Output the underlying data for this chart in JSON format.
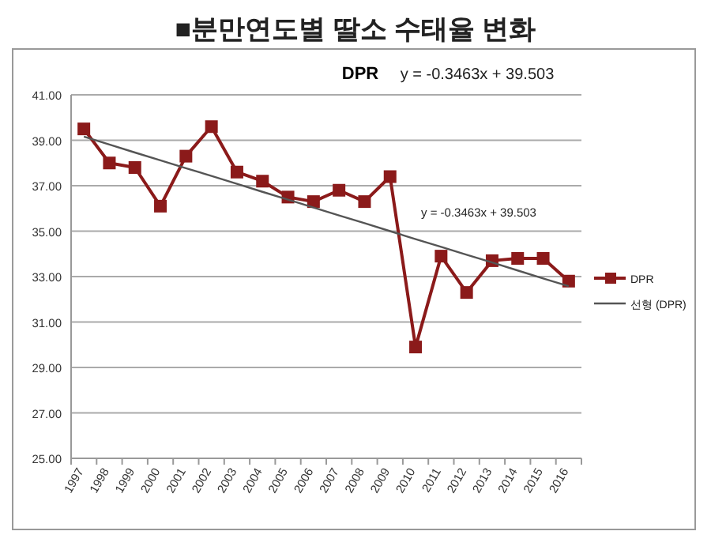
{
  "chart_data": {
    "type": "line",
    "title": "■분만연도별 딸소 수태율 변화",
    "subtitle": "DPR",
    "categories": [
      "1997",
      "1998",
      "1999",
      "2000",
      "2001",
      "2002",
      "2003",
      "2004",
      "2005",
      "2006",
      "2007",
      "2008",
      "2009",
      "2010",
      "2011",
      "2012",
      "2013",
      "2014",
      "2015",
      "2016"
    ],
    "series": [
      {
        "name": "DPR",
        "color": "#8b1a1a",
        "marker": "square",
        "values": [
          39.5,
          38.0,
          37.8,
          36.1,
          38.3,
          39.6,
          37.6,
          37.2,
          36.5,
          36.3,
          36.8,
          36.3,
          37.4,
          29.9,
          33.9,
          32.3,
          33.7,
          33.8,
          33.8,
          32.8
        ]
      },
      {
        "name": "선형 (DPR)",
        "color": "#555555",
        "marker": "none",
        "values": [
          39.16,
          38.81,
          38.46,
          38.12,
          37.77,
          37.43,
          37.08,
          36.73,
          36.39,
          36.04,
          35.69,
          35.35,
          35.0,
          34.65,
          34.31,
          33.96,
          33.62,
          33.27,
          32.92,
          32.58
        ]
      }
    ],
    "ylim": [
      25,
      41
    ],
    "yticks": [
      {
        "value": 25,
        "label": "25.00"
      },
      {
        "value": 27,
        "label": "27.00"
      },
      {
        "value": 29,
        "label": "29.00"
      },
      {
        "value": 31,
        "label": "31.00"
      },
      {
        "value": 33,
        "label": "33.00"
      },
      {
        "value": 35,
        "label": "35.00"
      },
      {
        "value": 37,
        "label": "37.00"
      },
      {
        "value": 39,
        "label": "39.00"
      },
      {
        "value": 41,
        "label": "41.00"
      }
    ],
    "grid": "y",
    "legend": "right",
    "annotations": [
      "y = -0.3463x + 39.503",
      "y = -0.3463x + 39.503"
    ]
  }
}
